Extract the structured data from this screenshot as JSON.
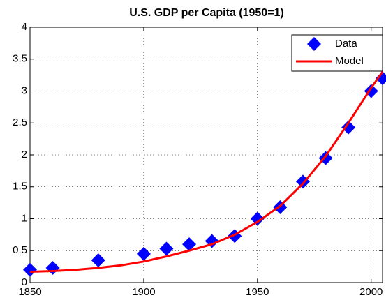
{
  "chart_data": {
    "type": "scatter-line",
    "title": "U.S. GDP per Capita (1950=1)",
    "xlim": [
      1850,
      2005
    ],
    "xticks": [
      1850,
      1900,
      1950,
      2000
    ],
    "ylim": [
      0,
      4
    ],
    "yticks": [
      0,
      0.5,
      1,
      1.5,
      2,
      2.5,
      3,
      3.5,
      4
    ],
    "grid": true,
    "legend": "northeast",
    "series": [
      {
        "name": "Data",
        "color": "#0000ff",
        "marker": "diamond",
        "x": [
          1850,
          1860,
          1880,
          1900,
          1910,
          1920,
          1930,
          1940,
          1950,
          1960,
          1970,
          1980,
          1990,
          2000,
          2005
        ],
        "values": [
          0.2,
          0.23,
          0.35,
          0.45,
          0.53,
          0.6,
          0.65,
          0.73,
          1.0,
          1.18,
          1.58,
          1.95,
          2.43,
          3.0,
          3.2
        ]
      },
      {
        "name": "Model",
        "color": "#ff0000",
        "marker": "line",
        "x": [
          1850,
          1860,
          1870,
          1880,
          1890,
          1900,
          1910,
          1920,
          1930,
          1940,
          1950,
          1960,
          1970,
          1980,
          1990,
          2000,
          2005
        ],
        "values": [
          0.17,
          0.18,
          0.2,
          0.23,
          0.27,
          0.33,
          0.41,
          0.5,
          0.6,
          0.75,
          0.95,
          1.2,
          1.55,
          1.98,
          2.5,
          3.05,
          3.3
        ]
      }
    ]
  }
}
